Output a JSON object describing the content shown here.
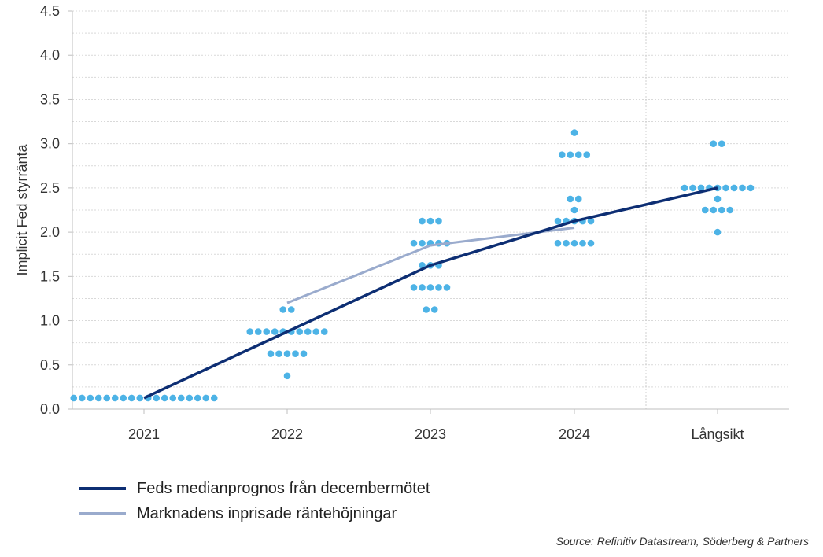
{
  "chart_data": {
    "type": "scatter",
    "ylabel": "Implicit Fed styrränta",
    "ylim": [
      0,
      4.5
    ],
    "yticks": [
      "0.0",
      "0.5",
      "1.0",
      "1.5",
      "2.0",
      "2.5",
      "3.0",
      "3.5",
      "4.0",
      "4.5"
    ],
    "categories": [
      "2021",
      "2022",
      "2023",
      "2024",
      "Långsikt"
    ],
    "grid": true,
    "legend_position": "bottom-left",
    "dot_color": "#4db3e6",
    "dots": [
      {
        "category": "2021",
        "levels": [
          {
            "y": 0.125,
            "count": 18
          }
        ]
      },
      {
        "category": "2022",
        "levels": [
          {
            "y": 1.125,
            "count": 2
          },
          {
            "y": 0.875,
            "count": 10
          },
          {
            "y": 0.625,
            "count": 5
          },
          {
            "y": 0.375,
            "count": 1
          }
        ]
      },
      {
        "category": "2023",
        "levels": [
          {
            "y": 2.125,
            "count": 3
          },
          {
            "y": 1.875,
            "count": 5
          },
          {
            "y": 1.625,
            "count": 3
          },
          {
            "y": 1.375,
            "count": 5
          },
          {
            "y": 1.125,
            "count": 2
          }
        ]
      },
      {
        "category": "2024",
        "levels": [
          {
            "y": 3.125,
            "count": 1
          },
          {
            "y": 2.875,
            "count": 4
          },
          {
            "y": 2.375,
            "count": 2
          },
          {
            "y": 2.25,
            "count": 1
          },
          {
            "y": 2.125,
            "count": 5
          },
          {
            "y": 1.875,
            "count": 5
          }
        ]
      },
      {
        "category": "Långsikt",
        "levels": [
          {
            "y": 3.0,
            "count": 2
          },
          {
            "y": 2.5,
            "count": 9
          },
          {
            "y": 2.375,
            "count": 1
          },
          {
            "y": 2.25,
            "count": 4
          },
          {
            "y": 2.0,
            "count": 1
          }
        ]
      }
    ],
    "series": [
      {
        "name": "Feds medianprognos från decembermötet",
        "color": "#0d2e73",
        "points": [
          {
            "x": "2021",
            "y": 0.125
          },
          {
            "x": "2022",
            "y": 0.875
          },
          {
            "x": "2023",
            "y": 1.625
          },
          {
            "x": "2024",
            "y": 2.125
          },
          {
            "x": "Långsikt",
            "y": 2.5
          }
        ]
      },
      {
        "name": "Marknadens inprisade räntehöjningar",
        "color": "#9aabcd",
        "points": [
          {
            "x": "2022",
            "y": 1.2
          },
          {
            "x": "2023",
            "y": 1.85
          },
          {
            "x": "2024",
            "y": 2.05
          }
        ]
      }
    ]
  },
  "source": "Source: Refinitiv Datastream, Söderberg & Partners"
}
